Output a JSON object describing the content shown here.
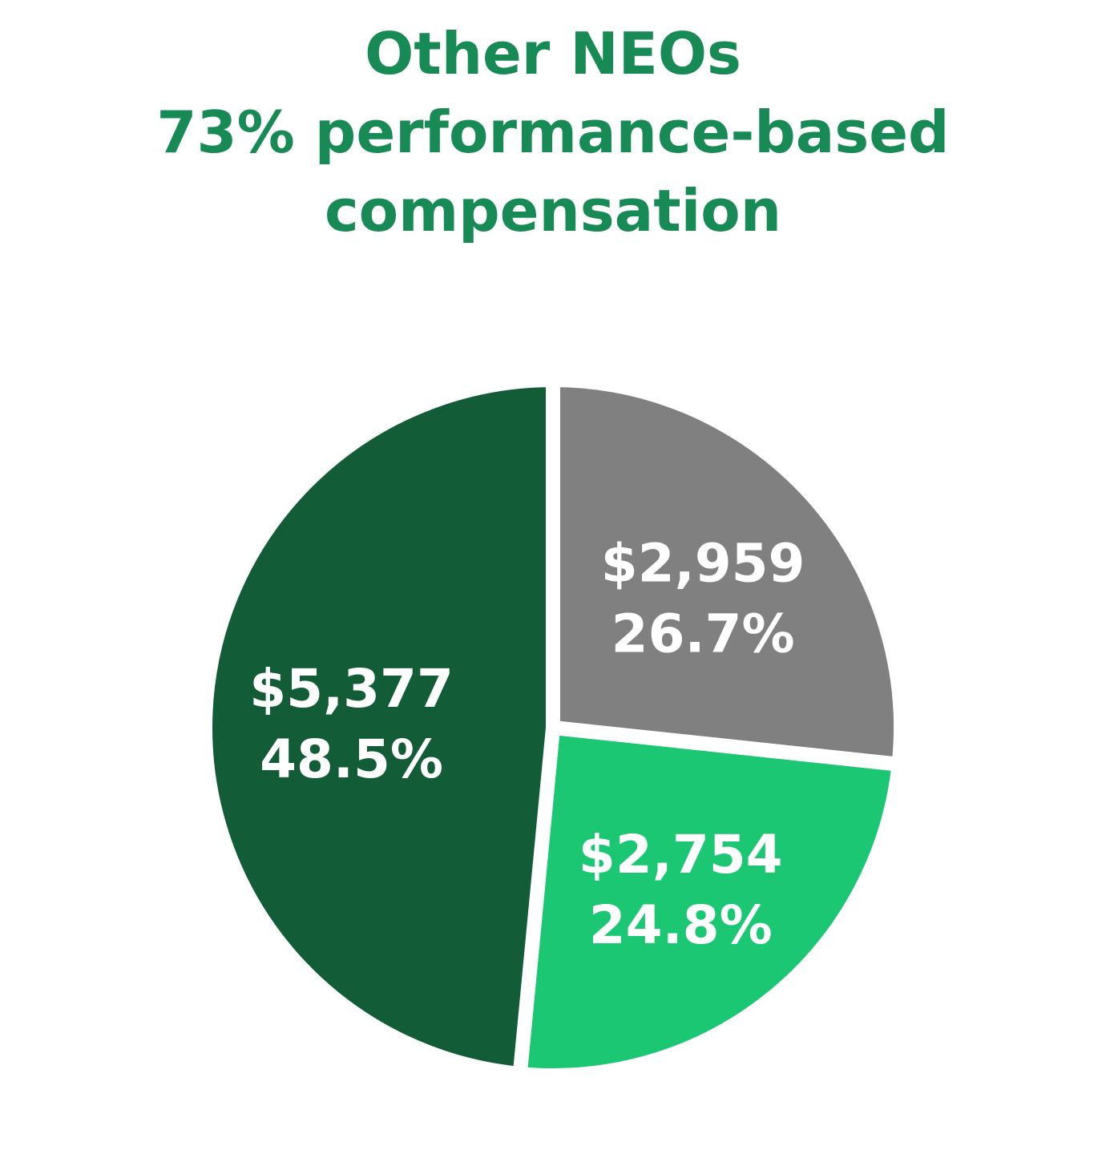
{
  "title_lines": [
    "Other NEOs",
    "73% performance-based",
    "compensation"
  ],
  "chart_data": {
    "type": "pie",
    "title": "Other NEOs 73% performance-based compensation",
    "slices": [
      {
        "value": 2959,
        "value_label": "$2,959",
        "percent": 26.7,
        "percent_label": "26.7%",
        "color": "#808080"
      },
      {
        "value": 2754,
        "value_label": "$2,754",
        "percent": 24.8,
        "percent_label": "24.8%",
        "color": "#1cc774"
      },
      {
        "value": 5377,
        "value_label": "$5,377",
        "percent": 48.5,
        "percent_label": "48.5%",
        "color": "#125c37"
      }
    ],
    "start_angle_deg": 0,
    "direction": "clockwise",
    "slice_separator_color": "#ffffff"
  }
}
